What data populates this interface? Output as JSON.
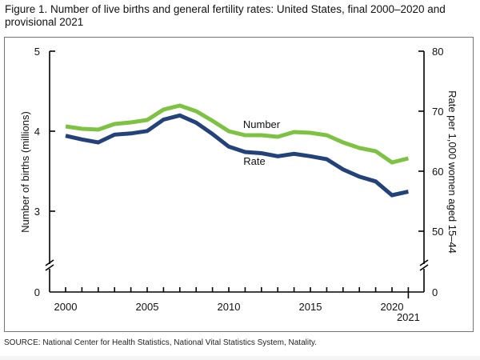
{
  "title": "Figure 1. Number of live births and general fertility rates: United States, final 2000–2020 and provisional 2021",
  "source": "SOURCE: National Center for Health Statistics, National Vital Statistics System, Natality.",
  "chart_data": {
    "type": "line",
    "title": "Number of live births and general fertility rates: United States, final 2000–2020 and provisional 2021",
    "xlabel": "",
    "ylabel": "Number of births (millions)",
    "y2label": "Rate per 1,000 women aged 15–44",
    "x": [
      2000,
      2001,
      2002,
      2003,
      2004,
      2005,
      2006,
      2007,
      2008,
      2009,
      2010,
      2011,
      2012,
      2013,
      2014,
      2015,
      2016,
      2017,
      2018,
      2019,
      2020,
      2021
    ],
    "x_tick_labels": [
      "2000",
      "2005",
      "2010",
      "2015",
      "2020",
      "2021"
    ],
    "y_tick_labels": [
      "0",
      "3",
      "4",
      "5"
    ],
    "y2_tick_labels": [
      "0",
      "50",
      "60",
      "70",
      "80"
    ],
    "ylim": [
      3,
      5
    ],
    "y2lim": [
      50,
      80
    ],
    "axis_break": true,
    "grid": false,
    "legend": "inline labels",
    "series": [
      {
        "name": "Number",
        "axis": "left",
        "color": "#7dc242",
        "values": [
          4.06,
          4.03,
          4.02,
          4.09,
          4.11,
          4.14,
          4.27,
          4.32,
          4.25,
          4.13,
          4.0,
          3.95,
          3.95,
          3.93,
          3.99,
          3.98,
          3.95,
          3.86,
          3.79,
          3.75,
          3.61,
          3.66
        ]
      },
      {
        "name": "Rate",
        "axis": "right",
        "color": "#24427a",
        "values": [
          65.9,
          65.3,
          64.8,
          66.1,
          66.3,
          66.7,
          68.6,
          69.3,
          68.1,
          66.2,
          64.1,
          63.2,
          63.0,
          62.5,
          62.9,
          62.5,
          62.0,
          60.3,
          59.1,
          58.3,
          56.0,
          56.6
        ]
      }
    ]
  }
}
